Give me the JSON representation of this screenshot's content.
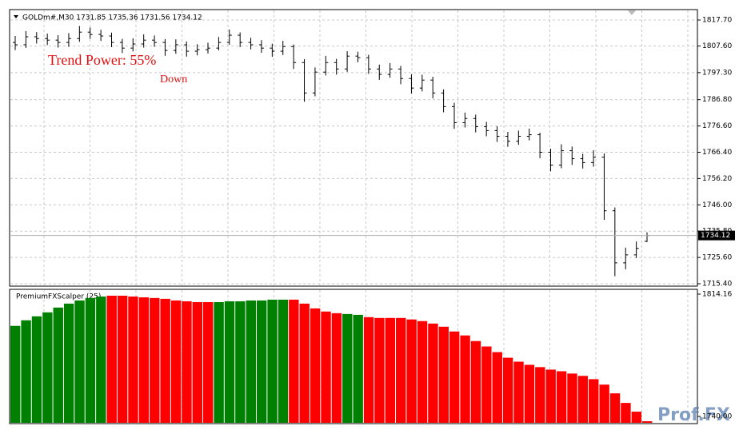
{
  "header": {
    "symbol_info": "GOLDm#,M30  1731.85 1735.36 1731.56 1734.12"
  },
  "overlay": {
    "trend_power": "Trend Power: 55%",
    "direction": "Down"
  },
  "watermark": "Prof.FX",
  "chart_data": [
    {
      "type": "ohlc",
      "color": "#000000",
      "grid": true,
      "open": [
        1809.0,
        1808.1,
        1811.2,
        1810.5,
        1809.9,
        1809.0,
        1810.5,
        1813.0,
        1812.1,
        1811.5,
        1809.0,
        1806.8,
        1808.4,
        1809.9,
        1809.0,
        1805.9,
        1808.1,
        1805.6,
        1806.2,
        1806.8,
        1809.0,
        1811.8,
        1809.0,
        1808.1,
        1806.8,
        1805.6,
        1807.4,
        1801.2,
        1789.4,
        1797.5,
        1801.2,
        1798.7,
        1803.7,
        1803.1,
        1798.7,
        1796.6,
        1798.7,
        1795.0,
        1791.3,
        1794.4,
        1789.4,
        1784.1,
        1777.9,
        1779.5,
        1776.3,
        1774.8,
        1772.6,
        1770.7,
        1772.6,
        1773.2,
        1766.4,
        1761.4,
        1767.0,
        1763.9,
        1762.4,
        1764.5,
        1743.7,
        1723.5,
        1726.6,
        1731.85
      ],
      "high": [
        1811.5,
        1813.4,
        1813.0,
        1812.4,
        1811.8,
        1812.6,
        1815.4,
        1814.8,
        1813.9,
        1812.8,
        1810.4,
        1810.6,
        1812.1,
        1811.7,
        1810.3,
        1810.2,
        1809.4,
        1808.3,
        1808.9,
        1811.1,
        1814.0,
        1812.9,
        1810.8,
        1809.9,
        1808.5,
        1809.6,
        1808.2,
        1802.5,
        1799.3,
        1803.8,
        1802.6,
        1805.6,
        1805.4,
        1804.2,
        1800.4,
        1801.0,
        1799.9,
        1796.6,
        1796.5,
        1795.7,
        1790.8,
        1785.6,
        1781.8,
        1781.0,
        1778.2,
        1776.5,
        1774.3,
        1774.8,
        1775.6,
        1774.0,
        1767.8,
        1769.5,
        1768.6,
        1765.8,
        1767.2,
        1766.0,
        1745.0,
        1729.4,
        1731.8,
        1735.36
      ],
      "low": [
        1806.0,
        1806.9,
        1808.6,
        1808.0,
        1807.0,
        1807.3,
        1809.2,
        1810.4,
        1809.6,
        1807.2,
        1804.9,
        1805.5,
        1807.0,
        1807.3,
        1803.8,
        1804.6,
        1803.5,
        1804.0,
        1804.7,
        1805.9,
        1808.1,
        1807.2,
        1806.3,
        1805.0,
        1803.4,
        1804.1,
        1798.7,
        1786.0,
        1788.1,
        1796.2,
        1796.5,
        1797.6,
        1801.3,
        1796.8,
        1794.5,
        1795.3,
        1792.8,
        1789.2,
        1790.0,
        1787.3,
        1781.9,
        1775.5,
        1776.0,
        1774.1,
        1772.6,
        1770.4,
        1768.5,
        1769.3,
        1771.0,
        1764.1,
        1759.0,
        1760.2,
        1761.5,
        1760.1,
        1760.8,
        1740.2,
        1718.3,
        1721.0,
        1725.4,
        1731.56
      ],
      "close": [
        1808.1,
        1811.2,
        1810.5,
        1809.9,
        1809.0,
        1810.5,
        1813.0,
        1812.1,
        1811.5,
        1809.0,
        1806.8,
        1808.4,
        1809.9,
        1809.0,
        1805.9,
        1808.1,
        1805.6,
        1806.2,
        1806.8,
        1809.0,
        1811.8,
        1809.0,
        1808.1,
        1806.8,
        1805.6,
        1807.4,
        1801.2,
        1789.4,
        1797.5,
        1801.2,
        1798.7,
        1803.7,
        1803.1,
        1798.7,
        1796.6,
        1798.7,
        1795.0,
        1791.3,
        1794.4,
        1789.4,
        1784.1,
        1777.9,
        1779.5,
        1776.3,
        1774.8,
        1772.6,
        1770.7,
        1772.6,
        1773.2,
        1766.4,
        1761.4,
        1767.0,
        1763.9,
        1762.4,
        1764.5,
        1743.7,
        1723.5,
        1726.6,
        1729.1,
        1734.12
      ],
      "current_price": 1734.12,
      "ylim": [
        1714.78,
        1821.43
      ],
      "yticks": [
        {
          "value": 1817.7,
          "label": "1817.70"
        },
        {
          "value": 1807.6,
          "label": "1807.60"
        },
        {
          "value": 1797.3,
          "label": "1797.30"
        },
        {
          "value": 1786.8,
          "label": "1786.80"
        },
        {
          "value": 1776.6,
          "label": "1776.60"
        },
        {
          "value": 1766.4,
          "label": "1766.40"
        },
        {
          "value": 1756.2,
          "label": "1756.20"
        },
        {
          "value": 1746.0,
          "label": "1746.00"
        },
        {
          "value": 1735.8,
          "label": "1735.80"
        },
        {
          "value": 1725.6,
          "label": "1725.60"
        },
        {
          "value": 1715.4,
          "label": "1715.40"
        }
      ]
    },
    {
      "type": "bar",
      "title": "PremiumFXScalper (25)",
      "values": [
        1794.9,
        1798.3,
        1800.7,
        1803.1,
        1806.0,
        1808.4,
        1810.3,
        1811.8,
        1812.7,
        1813.2,
        1813.2,
        1812.7,
        1812.2,
        1811.8,
        1811.3,
        1810.3,
        1809.8,
        1809.3,
        1809.3,
        1809.3,
        1809.8,
        1809.8,
        1810.3,
        1810.3,
        1810.8,
        1810.8,
        1810.8,
        1808.4,
        1805.5,
        1803.6,
        1802.6,
        1802.1,
        1801.6,
        1800.2,
        1799.7,
        1799.7,
        1799.7,
        1798.8,
        1797.8,
        1796.3,
        1794.4,
        1791.5,
        1789.1,
        1785.7,
        1782.4,
        1779.0,
        1775.6,
        1773.2,
        1771.3,
        1769.9,
        1768.4,
        1767.4,
        1766.0,
        1764.6,
        1762.6,
        1759.3,
        1754.0,
        1748.2,
        1742.9,
        1737.1
      ],
      "colors": [
        "#008000",
        "#008000",
        "#008000",
        "#008000",
        "#008000",
        "#008000",
        "#008000",
        "#008000",
        "#008000",
        "#ff0000",
        "#ff0000",
        "#ff0000",
        "#ff0000",
        "#ff0000",
        "#ff0000",
        "#ff0000",
        "#ff0000",
        "#ff0000",
        "#ff0000",
        "#008000",
        "#008000",
        "#008000",
        "#008000",
        "#008000",
        "#008000",
        "#008000",
        "#ff0000",
        "#ff0000",
        "#ff0000",
        "#ff0000",
        "#ff0000",
        "#008000",
        "#008000",
        "#ff0000",
        "#ff0000",
        "#ff0000",
        "#ff0000",
        "#ff0000",
        "#ff0000",
        "#ff0000",
        "#ff0000",
        "#ff0000",
        "#ff0000",
        "#ff0000",
        "#ff0000",
        "#ff0000",
        "#ff0000",
        "#ff0000",
        "#ff0000",
        "#ff0000",
        "#ff0000",
        "#ff0000",
        "#ff0000",
        "#ff0000",
        "#ff0000",
        "#ff0000",
        "#ff0000",
        "#ff0000",
        "#ff0000",
        "#ff0000"
      ],
      "ylim": [
        1736.15,
        1816.57
      ],
      "yticks": [
        1814.16,
        {
          "value": 1740,
          "label": "1740.00"
        }
      ]
    }
  ]
}
